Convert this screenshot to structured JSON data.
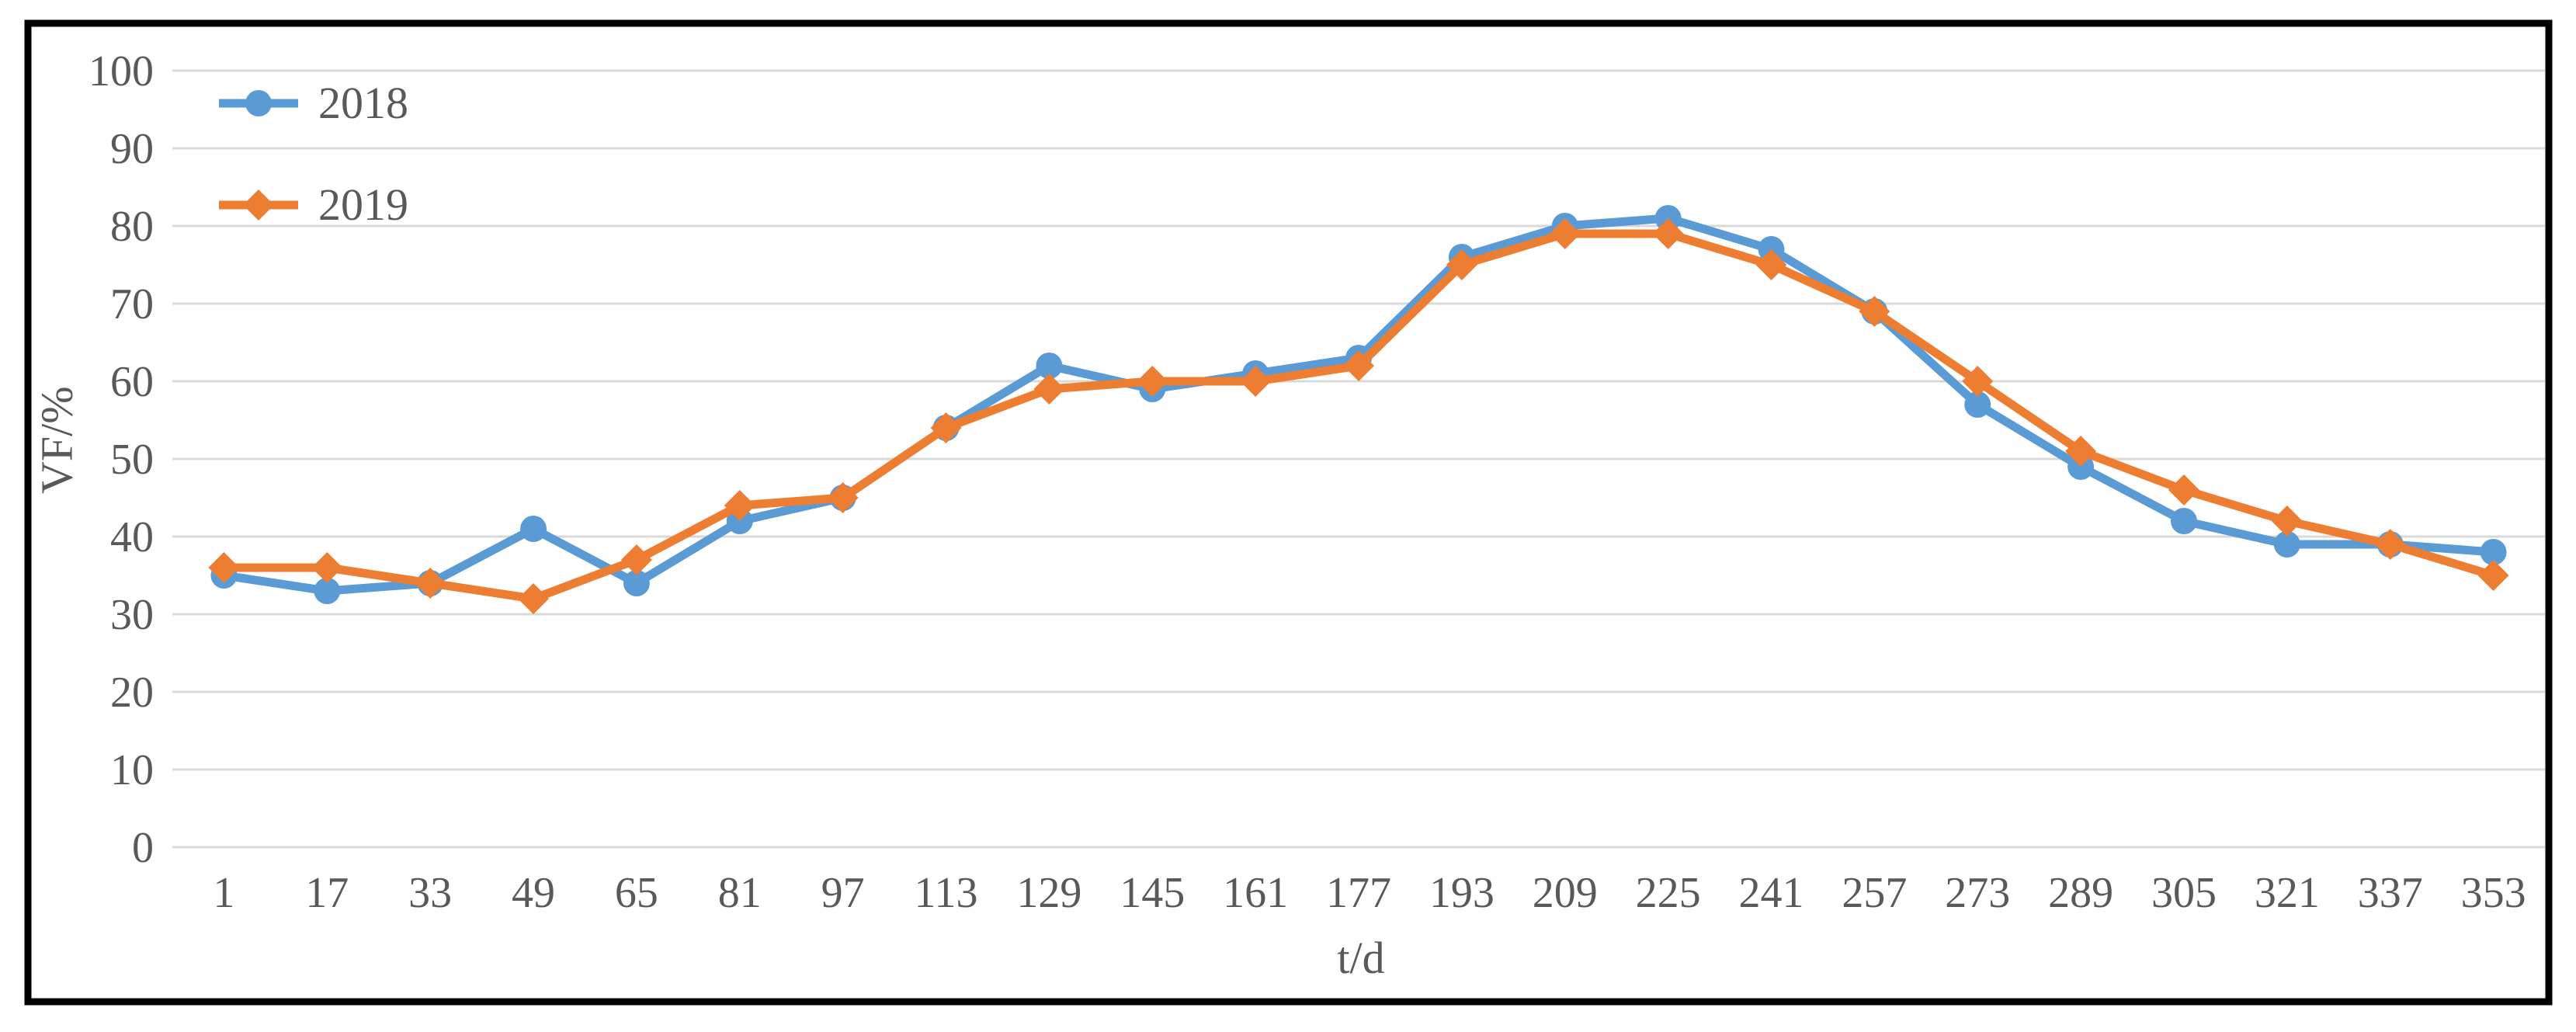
{
  "chart_data": {
    "type": "line",
    "title": "",
    "xlabel": "t/d",
    "ylabel": "VF/%",
    "ylim": [
      0,
      100
    ],
    "yticks": [
      0,
      10,
      20,
      30,
      40,
      50,
      60,
      70,
      80,
      90,
      100
    ],
    "grid": true,
    "legend_position": "top-left-inside",
    "categories": [
      "1",
      "17",
      "33",
      "49",
      "65",
      "81",
      "97",
      "113",
      "129",
      "145",
      "161",
      "177",
      "193",
      "209",
      "225",
      "241",
      "257",
      "273",
      "289",
      "305",
      "321",
      "337",
      "353"
    ],
    "series": [
      {
        "name": "2018",
        "color": "#5B9BD5",
        "marker": "circle",
        "values": [
          35,
          33,
          34,
          41,
          34,
          42,
          45,
          54,
          62,
          59,
          61,
          63,
          76,
          80,
          81,
          77,
          69,
          57,
          49,
          42,
          39,
          39,
          38
        ]
      },
      {
        "name": "2019",
        "color": "#ED7D31",
        "marker": "diamond",
        "values": [
          36,
          36,
          34,
          32,
          37,
          44,
          45,
          54,
          59,
          60,
          60,
          62,
          75,
          79,
          79,
          75,
          69,
          60,
          51,
          46,
          42,
          39,
          35
        ]
      }
    ]
  },
  "colors": {
    "gridline": "#D9D9D9",
    "axis_text": "#595959",
    "frame_border": "#000000",
    "background": "#FFFFFF"
  }
}
